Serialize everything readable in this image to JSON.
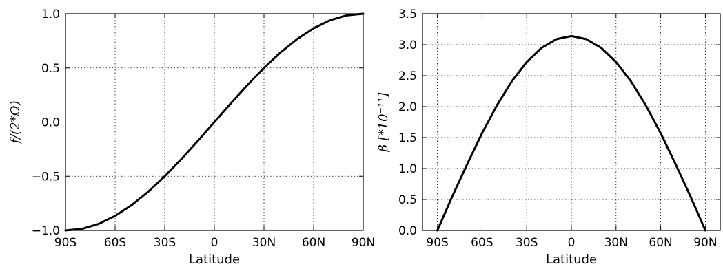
{
  "chart_data": [
    {
      "type": "line",
      "xlabel": "Latitude",
      "ylabel": "f/(2*Ω)",
      "xlim": [
        -90,
        90
      ],
      "ylim": [
        -1.0,
        1.0
      ],
      "grid": true,
      "xticks": [
        -90,
        -60,
        -30,
        0,
        30,
        60,
        90
      ],
      "xtick_labels": [
        "90S",
        "60S",
        "30S",
        "0",
        "30N",
        "60N",
        "90N"
      ],
      "yticks": [
        -1.0,
        -0.5,
        0.0,
        0.5,
        1.0
      ],
      "ytick_labels": [
        "−1.0",
        "−0.5",
        "0.0",
        "0.5",
        "1.0"
      ],
      "x": [
        -90,
        -80,
        -70,
        -60,
        -50,
        -40,
        -30,
        -20,
        -10,
        0,
        10,
        20,
        30,
        40,
        50,
        60,
        70,
        80,
        90
      ],
      "y": [
        -1.0,
        -0.985,
        -0.94,
        -0.866,
        -0.766,
        -0.643,
        -0.5,
        -0.342,
        -0.174,
        0.0,
        0.174,
        0.342,
        0.5,
        0.643,
        0.766,
        0.866,
        0.94,
        0.985,
        1.0
      ]
    },
    {
      "type": "line",
      "xlabel": "Latitude",
      "ylabel": "β [*10⁻¹¹]",
      "xlim": [
        -100,
        100
      ],
      "ylim": [
        0.0,
        3.5
      ],
      "grid": true,
      "xticks": [
        -90,
        -60,
        -30,
        0,
        30,
        60,
        90
      ],
      "xtick_labels": [
        "90S",
        "60S",
        "30S",
        "0",
        "30N",
        "60N",
        "90N"
      ],
      "yticks": [
        0.0,
        0.5,
        1.0,
        1.5,
        2.0,
        2.5,
        3.0,
        3.5
      ],
      "ytick_labels": [
        "0.0",
        "0.5",
        "1.0",
        "1.5",
        "2.0",
        "2.5",
        "3.0",
        "3.5"
      ],
      "x": [
        -90,
        -80,
        -70,
        -60,
        -50,
        -40,
        -30,
        -20,
        -10,
        0,
        10,
        20,
        30,
        40,
        50,
        60,
        70,
        80,
        90
      ],
      "y": [
        0.0,
        0.55,
        1.07,
        1.57,
        2.02,
        2.41,
        2.72,
        2.95,
        3.09,
        3.14,
        3.09,
        2.95,
        2.72,
        2.41,
        2.02,
        1.57,
        1.07,
        0.55,
        0.0
      ]
    }
  ]
}
